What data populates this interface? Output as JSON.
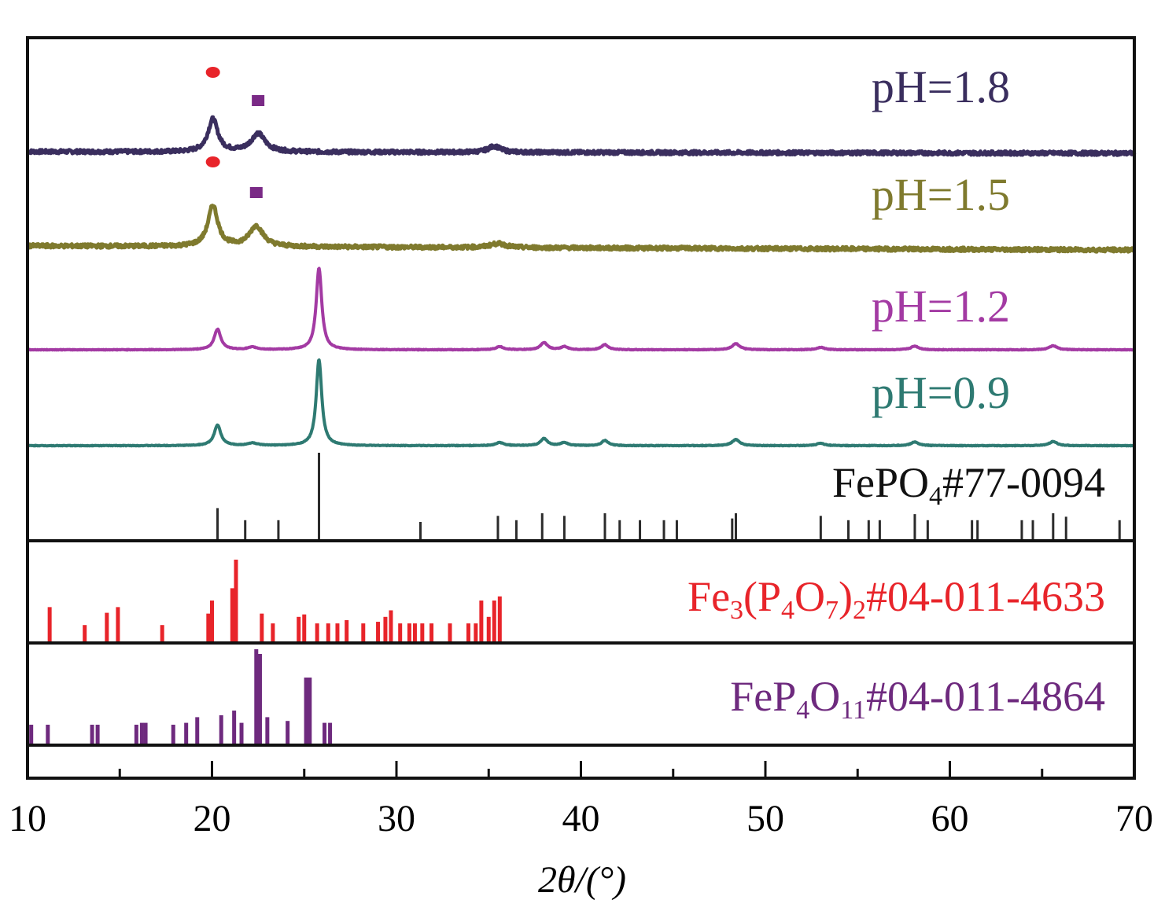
{
  "chart_data": {
    "type": "line",
    "xlabel": "2θ/(°)",
    "xlim": [
      10,
      70
    ],
    "xticks": [
      10,
      20,
      30,
      40,
      50,
      60,
      70
    ],
    "yaxis": "none",
    "series": [
      {
        "name": "pH=1.8",
        "color": "#3a2e5e",
        "label": "pH=1.8",
        "noise": 0.9,
        "baseline_drift": 0.2,
        "peaks": [
          {
            "x": 20.05,
            "height": 16,
            "width": 0.32
          },
          {
            "x": 22.5,
            "height": 9,
            "width": 0.45
          },
          {
            "x": 35.3,
            "height": 3,
            "width": 0.4
          }
        ],
        "markers": [
          {
            "shape": "circle",
            "x": 20.05,
            "color": "#e8242a"
          },
          {
            "shape": "square",
            "x": 22.5,
            "color": "#7a2a86"
          }
        ]
      },
      {
        "name": "pH=1.5",
        "color": "#7f7a2e",
        "label": "pH=1.5",
        "noise": 0.9,
        "baseline_drift": 0.5,
        "peaks": [
          {
            "x": 20.05,
            "height": 20,
            "width": 0.32
          },
          {
            "x": 22.4,
            "height": 10,
            "width": 0.45
          },
          {
            "x": 35.5,
            "height": 2,
            "width": 0.5
          }
        ],
        "markers": [
          {
            "shape": "circle",
            "x": 20.05,
            "color": "#e8242a"
          },
          {
            "shape": "square",
            "x": 22.4,
            "color": "#7a2a86"
          }
        ]
      },
      {
        "name": "pH=1.2",
        "color": "#a33aa3",
        "label": "pH=1.2",
        "noise": 0.15,
        "baseline_drift": 0,
        "peaks": [
          {
            "x": 20.3,
            "height": 10,
            "width": 0.22
          },
          {
            "x": 22.2,
            "height": 1.2,
            "width": 0.3
          },
          {
            "x": 25.8,
            "height": 40,
            "width": 0.18
          },
          {
            "x": 35.6,
            "height": 1.5,
            "width": 0.25
          },
          {
            "x": 38.0,
            "height": 3.5,
            "width": 0.22
          },
          {
            "x": 39.1,
            "height": 1.5,
            "width": 0.22
          },
          {
            "x": 41.3,
            "height": 2.5,
            "width": 0.22
          },
          {
            "x": 48.4,
            "height": 3,
            "width": 0.25
          },
          {
            "x": 53.0,
            "height": 1.2,
            "width": 0.25
          },
          {
            "x": 58.1,
            "height": 1.8,
            "width": 0.25
          },
          {
            "x": 65.6,
            "height": 2,
            "width": 0.25
          }
        ],
        "markers": []
      },
      {
        "name": "pH=0.9",
        "color": "#2e7a72",
        "label": "pH=0.9",
        "noise": 0.15,
        "baseline_drift": 0,
        "peaks": [
          {
            "x": 20.3,
            "height": 10,
            "width": 0.22
          },
          {
            "x": 22.2,
            "height": 1.2,
            "width": 0.3
          },
          {
            "x": 25.8,
            "height": 42,
            "width": 0.18
          },
          {
            "x": 35.6,
            "height": 1.5,
            "width": 0.25
          },
          {
            "x": 38.0,
            "height": 3.5,
            "width": 0.22
          },
          {
            "x": 39.1,
            "height": 1.5,
            "width": 0.22
          },
          {
            "x": 41.3,
            "height": 2.5,
            "width": 0.22
          },
          {
            "x": 48.4,
            "height": 3,
            "width": 0.25
          },
          {
            "x": 53.0,
            "height": 1.2,
            "width": 0.25
          },
          {
            "x": 58.1,
            "height": 1.8,
            "width": 0.25
          },
          {
            "x": 65.6,
            "height": 2,
            "width": 0.25
          }
        ],
        "markers": []
      }
    ],
    "references": [
      {
        "name": "FePO4#77-0094",
        "label_main": "FePO",
        "label_sub": "4",
        "label_rest": "#77-0094",
        "color": "#2b2b2b",
        "label_color": "#111111",
        "lines": [
          {
            "x": 20.3,
            "i": 36
          },
          {
            "x": 21.8,
            "i": 22
          },
          {
            "x": 23.6,
            "i": 22
          },
          {
            "x": 25.8,
            "i": 100
          },
          {
            "x": 31.3,
            "i": 20
          },
          {
            "x": 35.5,
            "i": 27
          },
          {
            "x": 36.5,
            "i": 22
          },
          {
            "x": 37.9,
            "i": 30
          },
          {
            "x": 39.1,
            "i": 27
          },
          {
            "x": 41.3,
            "i": 30
          },
          {
            "x": 42.1,
            "i": 22
          },
          {
            "x": 43.2,
            "i": 22
          },
          {
            "x": 44.5,
            "i": 22
          },
          {
            "x": 45.2,
            "i": 22
          },
          {
            "x": 48.2,
            "i": 24
          },
          {
            "x": 48.4,
            "i": 30
          },
          {
            "x": 53.0,
            "i": 27
          },
          {
            "x": 54.5,
            "i": 22
          },
          {
            "x": 55.6,
            "i": 22
          },
          {
            "x": 56.2,
            "i": 22
          },
          {
            "x": 58.1,
            "i": 29
          },
          {
            "x": 58.8,
            "i": 22
          },
          {
            "x": 61.2,
            "i": 22
          },
          {
            "x": 61.5,
            "i": 22
          },
          {
            "x": 63.9,
            "i": 22
          },
          {
            "x": 64.5,
            "i": 22
          },
          {
            "x": 65.6,
            "i": 30
          },
          {
            "x": 66.3,
            "i": 26
          },
          {
            "x": 69.2,
            "i": 22
          }
        ]
      },
      {
        "name": "Fe3(P4O7)2#04-011-4633",
        "label_parts": [
          "Fe",
          "3",
          "(P",
          "4",
          "O",
          "7",
          ")",
          "2",
          "#04-011-4633"
        ],
        "color": "#e8242a",
        "label_color": "#e8242a",
        "lines": [
          {
            "x": 11.2,
            "i": 42
          },
          {
            "x": 13.1,
            "i": 20
          },
          {
            "x": 14.3,
            "i": 35
          },
          {
            "x": 14.9,
            "i": 42
          },
          {
            "x": 17.3,
            "i": 20
          },
          {
            "x": 19.8,
            "i": 34
          },
          {
            "x": 20.0,
            "i": 50
          },
          {
            "x": 21.1,
            "i": 65
          },
          {
            "x": 21.3,
            "i": 100
          },
          {
            "x": 22.7,
            "i": 34
          },
          {
            "x": 23.3,
            "i": 22
          },
          {
            "x": 24.7,
            "i": 30
          },
          {
            "x": 25.0,
            "i": 33
          },
          {
            "x": 25.7,
            "i": 22
          },
          {
            "x": 26.3,
            "i": 22
          },
          {
            "x": 26.8,
            "i": 22
          },
          {
            "x": 27.3,
            "i": 26
          },
          {
            "x": 28.2,
            "i": 22
          },
          {
            "x": 29.0,
            "i": 24
          },
          {
            "x": 29.4,
            "i": 30
          },
          {
            "x": 29.7,
            "i": 38
          },
          {
            "x": 30.2,
            "i": 22
          },
          {
            "x": 30.7,
            "i": 22
          },
          {
            "x": 31.0,
            "i": 22
          },
          {
            "x": 31.4,
            "i": 22
          },
          {
            "x": 31.9,
            "i": 22
          },
          {
            "x": 32.9,
            "i": 22
          },
          {
            "x": 33.9,
            "i": 22
          },
          {
            "x": 34.3,
            "i": 22
          },
          {
            "x": 34.6,
            "i": 50
          },
          {
            "x": 35.0,
            "i": 30
          },
          {
            "x": 35.3,
            "i": 50
          },
          {
            "x": 35.6,
            "i": 55
          }
        ]
      },
      {
        "name": "FeP4O11#04-011-4864",
        "label_parts": [
          "FeP",
          "4",
          "O",
          "11",
          "#04-011-4864"
        ],
        "color": "#6e2a7e",
        "label_color": "#6e2a7e",
        "lines": [
          {
            "x": 10.2,
            "i": 20
          },
          {
            "x": 11.1,
            "i": 20
          },
          {
            "x": 13.5,
            "i": 20
          },
          {
            "x": 13.8,
            "i": 20
          },
          {
            "x": 15.9,
            "i": 20
          },
          {
            "x": 16.2,
            "i": 22
          },
          {
            "x": 16.4,
            "i": 22
          },
          {
            "x": 17.9,
            "i": 20
          },
          {
            "x": 18.6,
            "i": 22
          },
          {
            "x": 19.2,
            "i": 28
          },
          {
            "x": 20.5,
            "i": 30
          },
          {
            "x": 21.2,
            "i": 35
          },
          {
            "x": 21.6,
            "i": 22
          },
          {
            "x": 22.4,
            "i": 100
          },
          {
            "x": 22.6,
            "i": 95
          },
          {
            "x": 23.0,
            "i": 28
          },
          {
            "x": 24.1,
            "i": 24
          },
          {
            "x": 25.1,
            "i": 70
          },
          {
            "x": 25.3,
            "i": 70
          },
          {
            "x": 26.1,
            "i": 22
          },
          {
            "x": 26.4,
            "i": 22
          }
        ]
      }
    ]
  }
}
